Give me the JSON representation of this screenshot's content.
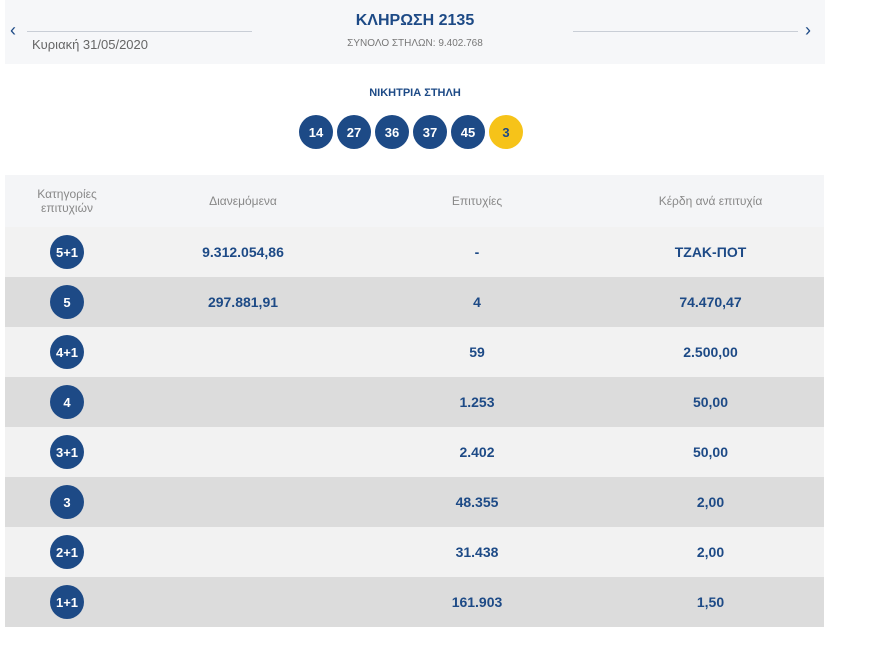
{
  "header": {
    "title": "ΚΛΗΡΩΣΗ 2135",
    "date": "Κυριακή 31/05/2020",
    "total": "ΣΥΝΟΛΟ ΣΤΗΛΩΝ: 9.402.768",
    "prev": "‹",
    "next": "›"
  },
  "winning": {
    "label": "ΝΙΚΗΤΡΙΑ ΣΤΗΛΗ",
    "numbers": [
      "14",
      "27",
      "36",
      "37",
      "45"
    ],
    "joker": "3"
  },
  "colors": {
    "primary": "#1d4a86",
    "joker": "#f6c319"
  },
  "table": {
    "headers": [
      "Κατηγορίες επιτυχιών",
      "Διανεμόμενα",
      "Επιτυχίες",
      "Κέρδη ανά επιτυχία"
    ],
    "rows": [
      {
        "cat": "5+1",
        "dist": "9.312.054,86",
        "wins": "-",
        "prize": "ΤΖΑΚ-ΠΟΤ"
      },
      {
        "cat": "5",
        "dist": "297.881,91",
        "wins": "4",
        "prize": "74.470,47"
      },
      {
        "cat": "4+1",
        "dist": "",
        "wins": "59",
        "prize": "2.500,00"
      },
      {
        "cat": "4",
        "dist": "",
        "wins": "1.253",
        "prize": "50,00"
      },
      {
        "cat": "3+1",
        "dist": "",
        "wins": "2.402",
        "prize": "50,00"
      },
      {
        "cat": "3",
        "dist": "",
        "wins": "48.355",
        "prize": "2,00"
      },
      {
        "cat": "2+1",
        "dist": "",
        "wins": "31.438",
        "prize": "2,00"
      },
      {
        "cat": "1+1",
        "dist": "",
        "wins": "161.903",
        "prize": "1,50"
      }
    ]
  }
}
